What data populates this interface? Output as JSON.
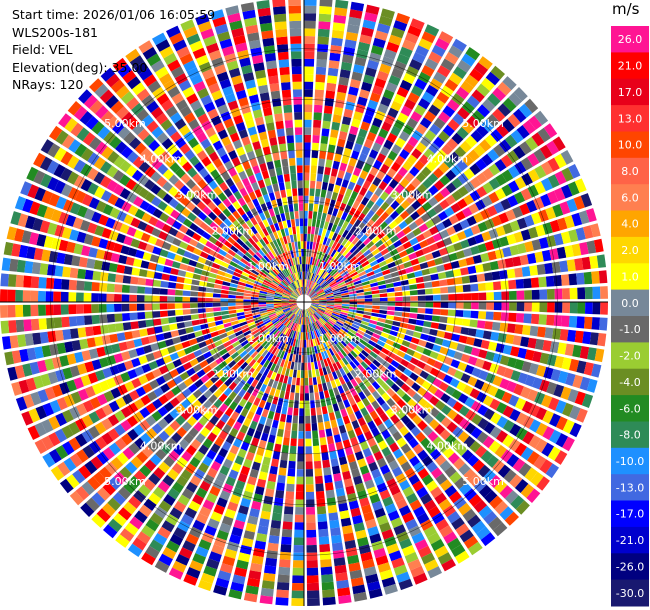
{
  "info": {
    "start_time": "Start time: 2026/01/06 16:05:59",
    "site": "WLS200s-181",
    "field": "Field: VEL",
    "elevation": "Elevation(deg): 35.00",
    "nrays": "NRays: 120"
  },
  "chart_data": {
    "type": "heatmap",
    "projection": "polar (PPI radar scan)",
    "field": "VEL",
    "unit": "m/s",
    "nrays": 120,
    "elevation_deg": 35.0,
    "range_rings": [
      {
        "label": "1.00km",
        "value": 1.0
      },
      {
        "label": "2.00km",
        "value": 2.0
      },
      {
        "label": "3.00km",
        "value": 3.0
      },
      {
        "label": "4.00km",
        "value": 4.0
      },
      {
        "label": "5.00km",
        "value": 5.0
      }
    ],
    "max_range_km": 6.0,
    "colorbar": {
      "unit": "m/s",
      "ticks": [
        "26.0",
        "21.0",
        "17.0",
        "13.0",
        "10.0",
        "8.0",
        "6.0",
        "4.0",
        "2.0",
        "1.0",
        "0.0",
        "-1.0",
        "-2.0",
        "-4.0",
        "-6.0",
        "-8.0",
        "-10.0",
        "-13.0",
        "-17.0",
        "-21.0",
        "-26.0",
        "-30.0"
      ],
      "colors": [
        "#ff1493",
        "#ff0000",
        "#e8001a",
        "#ff3030",
        "#ff4500",
        "#ff6347",
        "#ff7f50",
        "#ffa500",
        "#ffd700",
        "#ffff00",
        "#778899",
        "#696969",
        "#9acd32",
        "#6b8e23",
        "#228b22",
        "#2e8b57",
        "#1e90ff",
        "#4169e1",
        "#0000ff",
        "#0000cd",
        "#000080",
        "#191970"
      ]
    }
  }
}
